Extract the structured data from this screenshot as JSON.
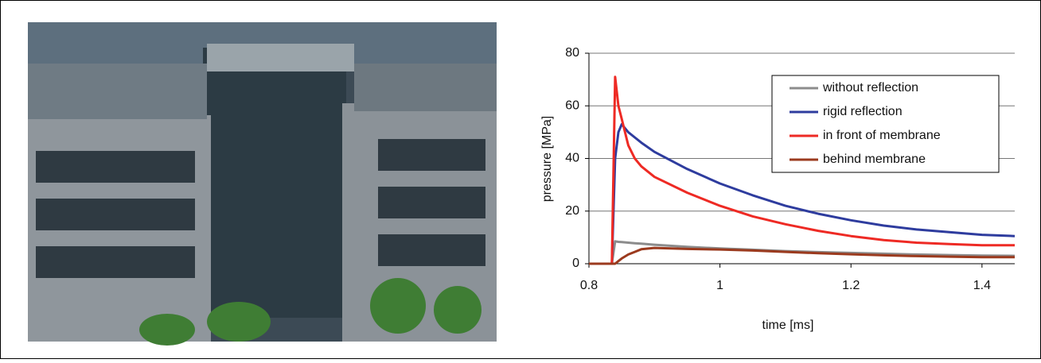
{
  "chart_data": {
    "type": "line",
    "x_label": "time [ms]",
    "y_label": "pressure [MPa]",
    "x": [
      0.8,
      0.835,
      0.84,
      0.845,
      0.85,
      0.86,
      0.87,
      0.88,
      0.9,
      0.95,
      1.0,
      1.05,
      1.1,
      1.15,
      1.2,
      1.25,
      1.3,
      1.35,
      1.4,
      1.45
    ],
    "series": [
      {
        "name": "without reflection",
        "color": "#8c8c8c",
        "values": [
          0,
          0,
          8.5,
          8.3,
          8.2,
          8,
          7.8,
          7.6,
          7.2,
          6.4,
          5.8,
          5.3,
          4.8,
          4.4,
          4.1,
          3.8,
          3.5,
          3.3,
          3.1,
          3.0
        ]
      },
      {
        "name": "rigid reflection",
        "color": "#2e3c9e",
        "values": [
          0,
          0,
          40,
          50,
          53,
          50,
          48,
          46,
          42.5,
          36,
          30.5,
          26,
          22,
          19,
          16.5,
          14.5,
          13,
          12,
          11,
          10.5
        ]
      },
      {
        "name": "in front of membrane",
        "color": "#ee2a24",
        "values": [
          0,
          0,
          71,
          60,
          55,
          45,
          40,
          37,
          33,
          27,
          22,
          18,
          15,
          12.5,
          10.5,
          9,
          8,
          7.5,
          7,
          7
        ]
      },
      {
        "name": "behind membrane",
        "color": "#9b3a1e",
        "values": [
          0,
          0,
          0,
          1,
          2,
          3.5,
          4.5,
          5.5,
          6,
          5.6,
          5.4,
          5,
          4.5,
          4,
          3.6,
          3.2,
          2.9,
          2.7,
          2.5,
          2.5
        ]
      }
    ],
    "xlim": [
      0.8,
      1.45
    ],
    "xticks": [
      0.8,
      1,
      1.2,
      1.4
    ],
    "ylim": [
      0,
      80
    ],
    "yticks": [
      0,
      20,
      40,
      60,
      80
    ],
    "grid": true,
    "legend": "upper right"
  }
}
